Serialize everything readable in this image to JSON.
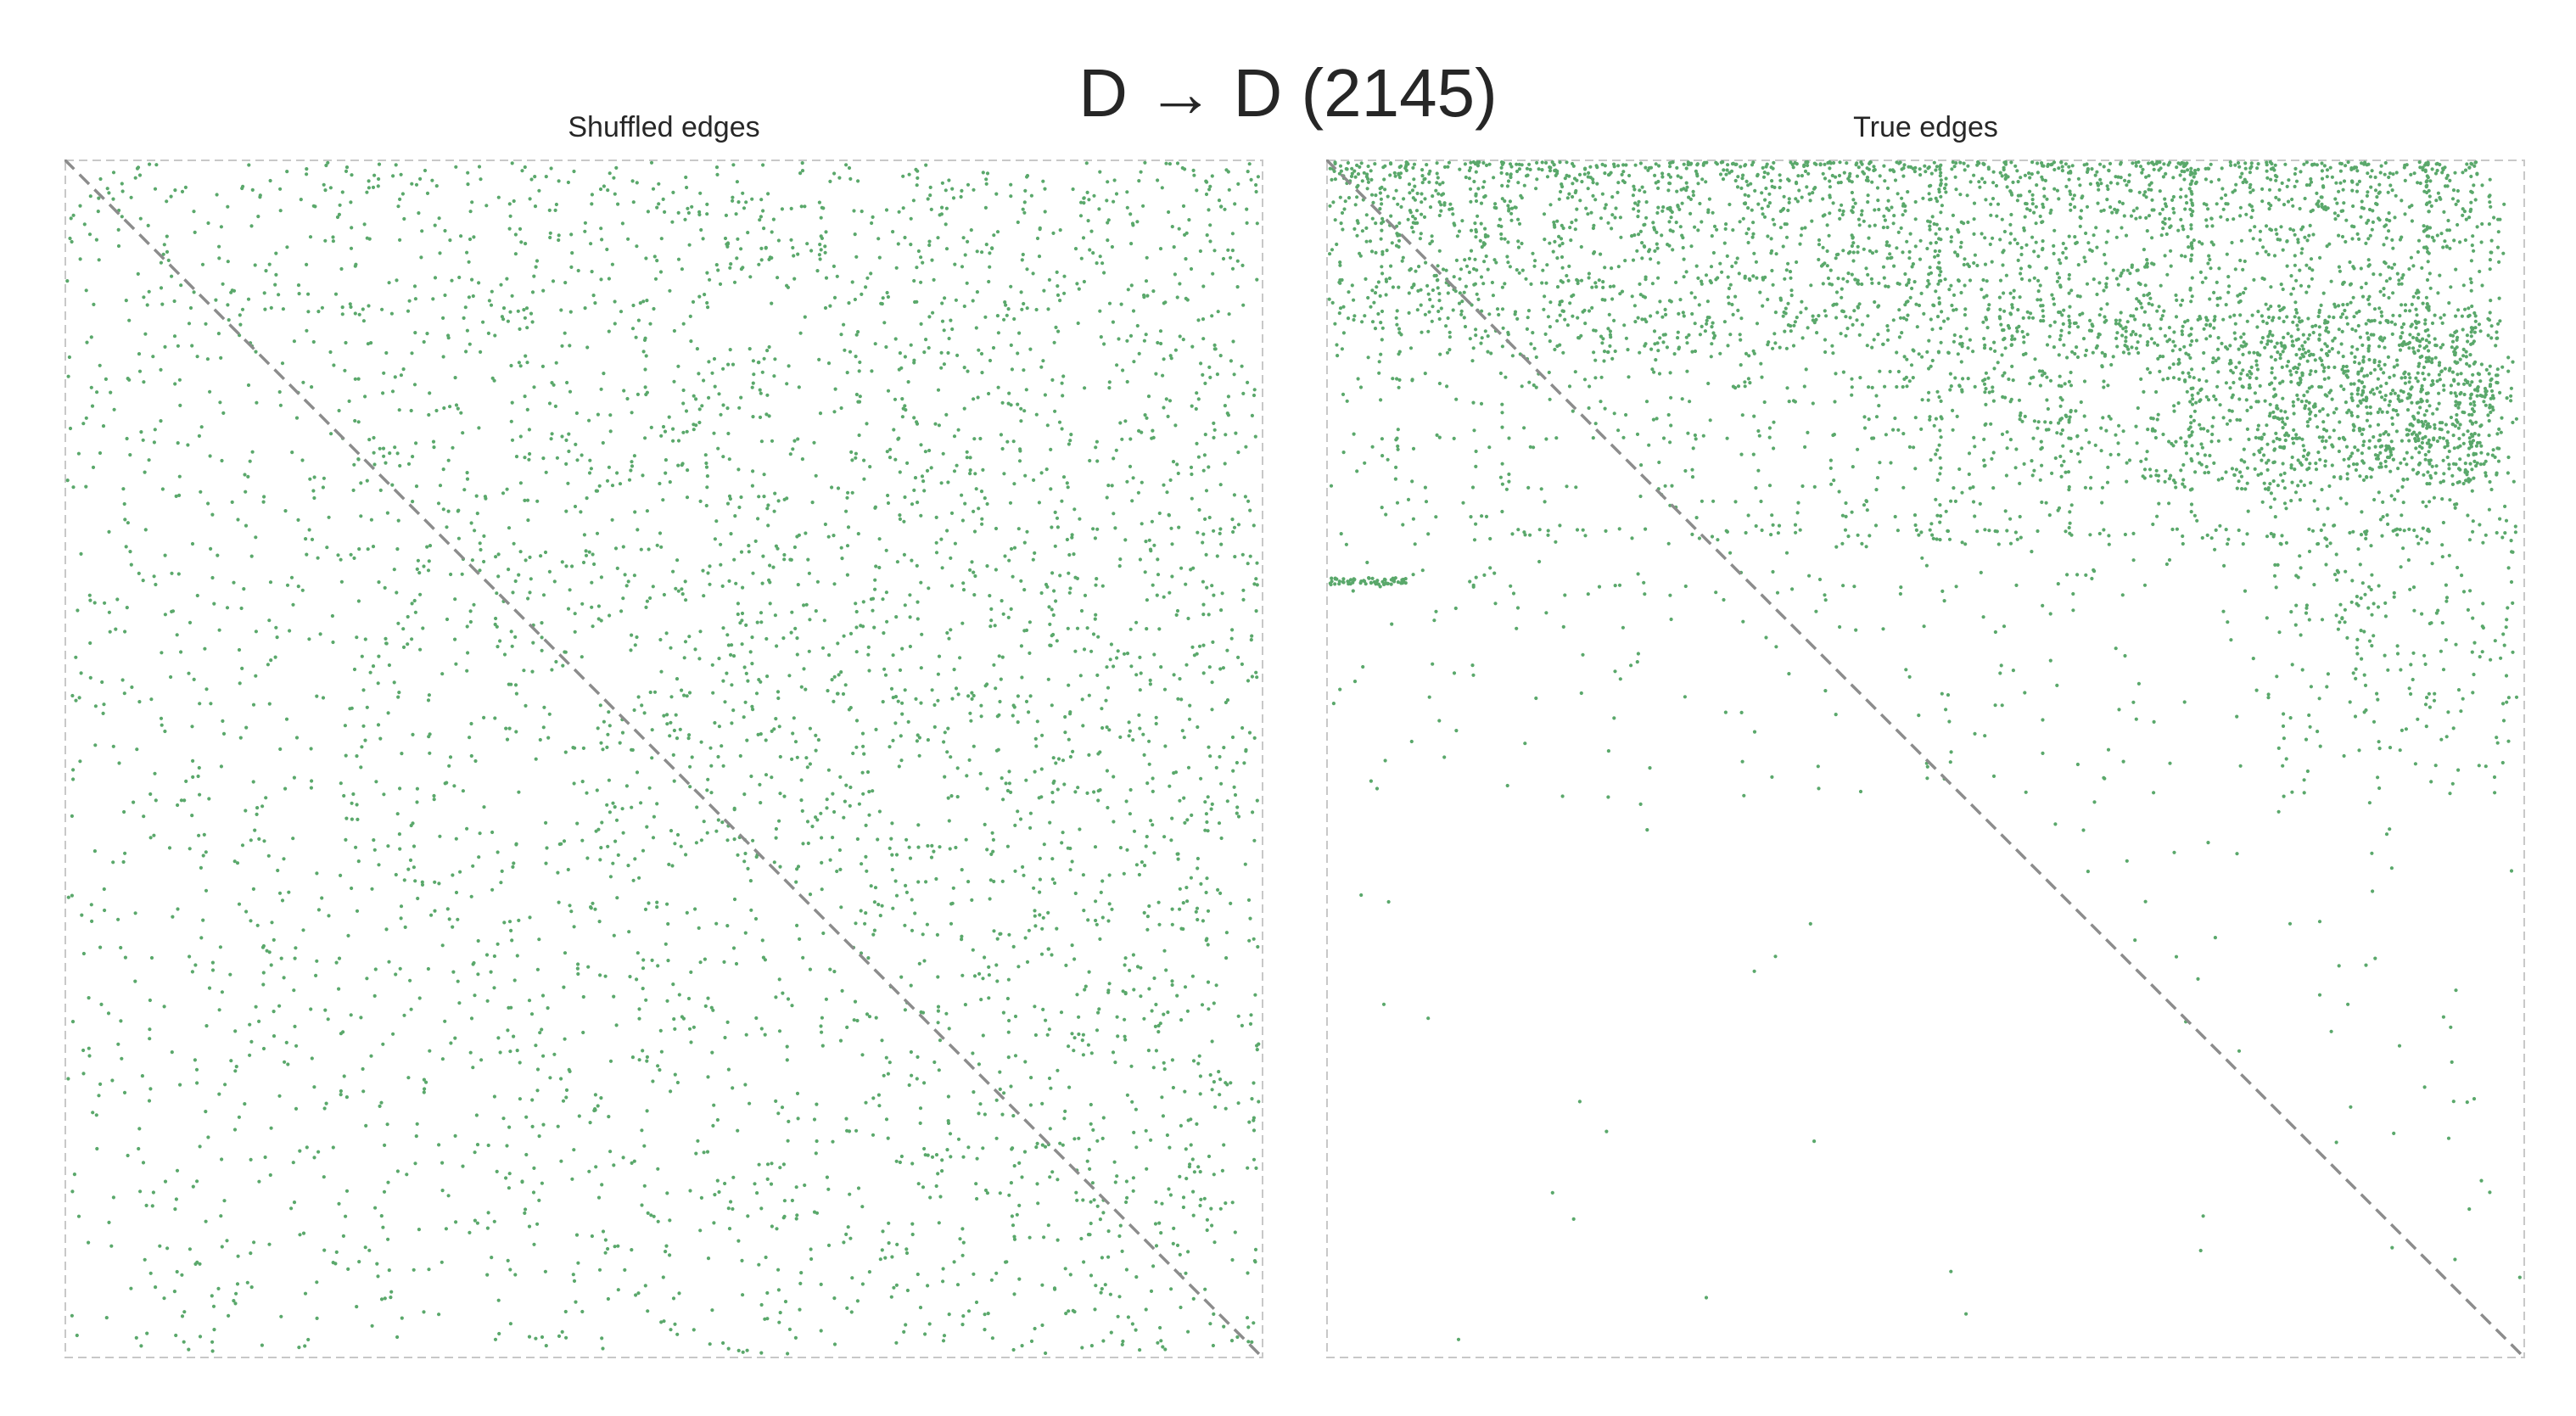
{
  "title": "D → D (2145)",
  "chart_data": [
    {
      "type": "scatter",
      "title": "Shuffled edges",
      "n_nodes": 2145,
      "xlim": [
        0,
        2145
      ],
      "ylim": [
        0,
        2145
      ],
      "y_inverted": true,
      "axes_visible": false,
      "grid": false,
      "frame": "dashed light gray",
      "diagonal": "dashed gray line y = x",
      "point_color": "#5aa86b",
      "density_profile": "roughly uniform, denser toward the upper-right (upper triangle)",
      "approx_points_drawn": 4200
    },
    {
      "type": "scatter",
      "title": "True edges",
      "n_nodes": 2145,
      "xlim": [
        0,
        2145
      ],
      "ylim": [
        0,
        2145
      ],
      "y_inverted": true,
      "axes_visible": false,
      "grid": false,
      "frame": "dashed light gray",
      "diagonal": "dashed gray line y = x",
      "point_color": "#5aa86b",
      "density_profile": "very dense in the top rows (y < ~300) with horizontal stripes, sparse below, mostly in the upper triangle",
      "approx_points_drawn": 5200
    }
  ],
  "colors": {
    "points": "#5aa86b",
    "diagonal": "#8c8c8c",
    "frame": "#c8c8c8"
  }
}
